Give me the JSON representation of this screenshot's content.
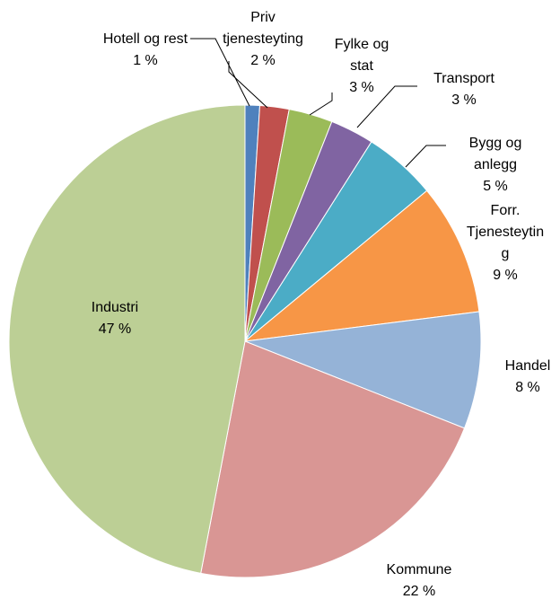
{
  "chart_data": {
    "type": "pie",
    "categories": [
      "Hotell og rest",
      "Priv tjenesteyting",
      "Fylke og stat",
      "Transport",
      "Bygg og anlegg",
      "Forr. Tjenesteyting",
      "Handel",
      "Kommune",
      "Industri"
    ],
    "values": [
      1,
      2,
      3,
      3,
      5,
      9,
      8,
      22,
      47
    ],
    "value_labels": [
      "1 %",
      "2 %",
      "3 %",
      "3 %",
      "5 %",
      "9 %",
      "8 %",
      "22 %",
      "47 %"
    ],
    "colors": [
      "#4f81bd",
      "#c0504d",
      "#9bbb59",
      "#8064a2",
      "#4bacc6",
      "#f79646",
      "#95b3d7",
      "#d99694",
      "#bccf95"
    ]
  }
}
